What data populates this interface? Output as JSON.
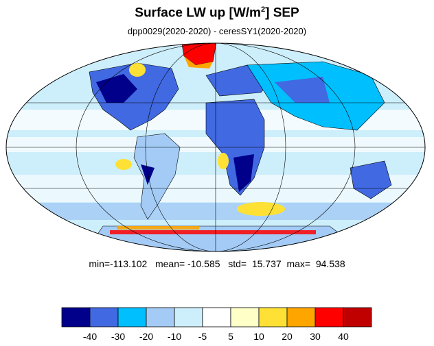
{
  "title": {
    "main": "Surface LW up [W/m",
    "sup": "2",
    "suffix": "]  SEP"
  },
  "subtitle": "dpp0029(2020-2020) - ceresSY1(2020-2020)",
  "stats": {
    "min_label": "min=",
    "min": "-113.102",
    "mean_label": "mean=",
    "mean": "-10.585",
    "std_label": "std=",
    "std": "15.737",
    "max_label": "max=",
    "max": "94.538"
  },
  "colorbar": {
    "colors": [
      "#00008b",
      "#4169e1",
      "#00bfff",
      "#a3cbf5",
      "#cdeefb",
      "#ffffff",
      "#ffffc8",
      "#ffe135",
      "#ffa500",
      "#ff0000",
      "#c00000"
    ],
    "labels": [
      "-40",
      "-30",
      "-20",
      "-10",
      "-5",
      "5",
      "10",
      "20",
      "30",
      "40"
    ]
  },
  "map": {
    "projection": "mollweide",
    "ocean_color": "#cdeefb",
    "land_outline_color": "#000000"
  }
}
